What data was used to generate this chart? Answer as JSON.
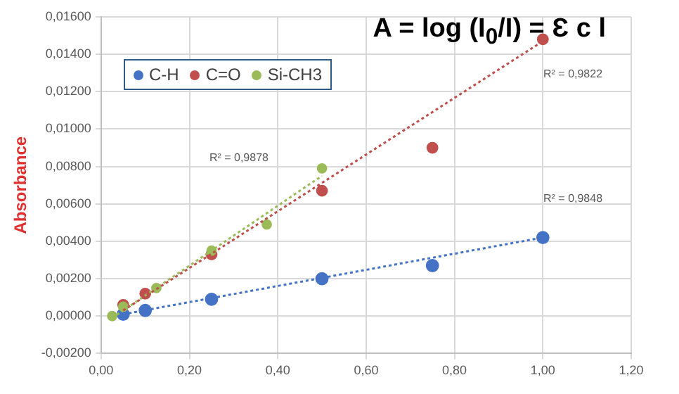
{
  "chart_data": {
    "type": "scatter",
    "title": "A = log (I$_{0}$/I) = Ɛ c l",
    "ylabel": "Absorbance",
    "xlim": [
      0,
      1.2
    ],
    "xticks": [
      {
        "value": 0,
        "label": "0,00"
      },
      {
        "value": 0.2,
        "label": "0,20"
      },
      {
        "value": 0.4,
        "label": "0,40"
      },
      {
        "value": 0.6,
        "label": "0,60"
      },
      {
        "value": 0.8,
        "label": "0,80"
      },
      {
        "value": 1,
        "label": "1,00"
      },
      {
        "value": 1.2,
        "label": "1,20"
      }
    ],
    "ylim": [
      -0.002,
      0.016
    ],
    "yticks": [
      {
        "value": -0.002,
        "label": "-0,00200"
      },
      {
        "value": 0,
        "label": "0,00000"
      },
      {
        "value": 0.002,
        "label": "0,00200"
      },
      {
        "value": 0.004,
        "label": "0,00400"
      },
      {
        "value": 0.006,
        "label": "0,00600"
      },
      {
        "value": 0.008,
        "label": "0,00800"
      },
      {
        "value": 0.01,
        "label": "0,01000"
      },
      {
        "value": 0.012,
        "label": "0,01200"
      },
      {
        "value": 0.014,
        "label": "0,01400"
      },
      {
        "value": 0.016,
        "label": "0,01600"
      }
    ],
    "grid": true,
    "legend": "top left",
    "marker": "circle",
    "series": [
      {
        "name": "C-H",
        "color": "#4472c4",
        "x": [
          0.05,
          0.1,
          0.25,
          0.5,
          0.75,
          1.0
        ],
        "values": [
          0.0001,
          0.0003,
          0.0009,
          0.002,
          0.0027,
          0.0042
        ]
      },
      {
        "name": "C=O",
        "color": "#c0504d",
        "x": [
          0.05,
          0.1,
          0.25,
          0.5,
          0.75,
          1.0
        ],
        "values": [
          0.0006,
          0.0012,
          0.0033,
          0.0067,
          0.009,
          0.0148
        ]
      },
      {
        "name": "Si-CH3",
        "color": "#9bbb59",
        "x": [
          0.025,
          0.05,
          0.125,
          0.25,
          0.375,
          0.5
        ],
        "values": [
          0.0,
          0.0005,
          0.0015,
          0.0035,
          0.0049,
          0.0079
        ]
      },
      {
        "type": "line",
        "color": "#4472c4",
        "line_style": "dotted",
        "marker": "none",
        "x": [
          0.05,
          1.0
        ],
        "values": [
          0.0001,
          0.0042
        ]
      },
      {
        "type": "line",
        "color": "#c0504d",
        "line_style": "dotted",
        "marker": "none",
        "x": [
          0.05,
          1.0
        ],
        "values": [
          0.0003,
          0.0147
        ]
      },
      {
        "type": "line",
        "color": "#9bbb59",
        "line_style": "dotted",
        "marker": "none",
        "x": [
          0.025,
          0.5
        ],
        "values": [
          -0.0001,
          0.0075
        ]
      }
    ],
    "annotations": [
      "R² = 0,9822",
      "R² = 0,9878",
      "R² = 0,9848"
    ]
  }
}
